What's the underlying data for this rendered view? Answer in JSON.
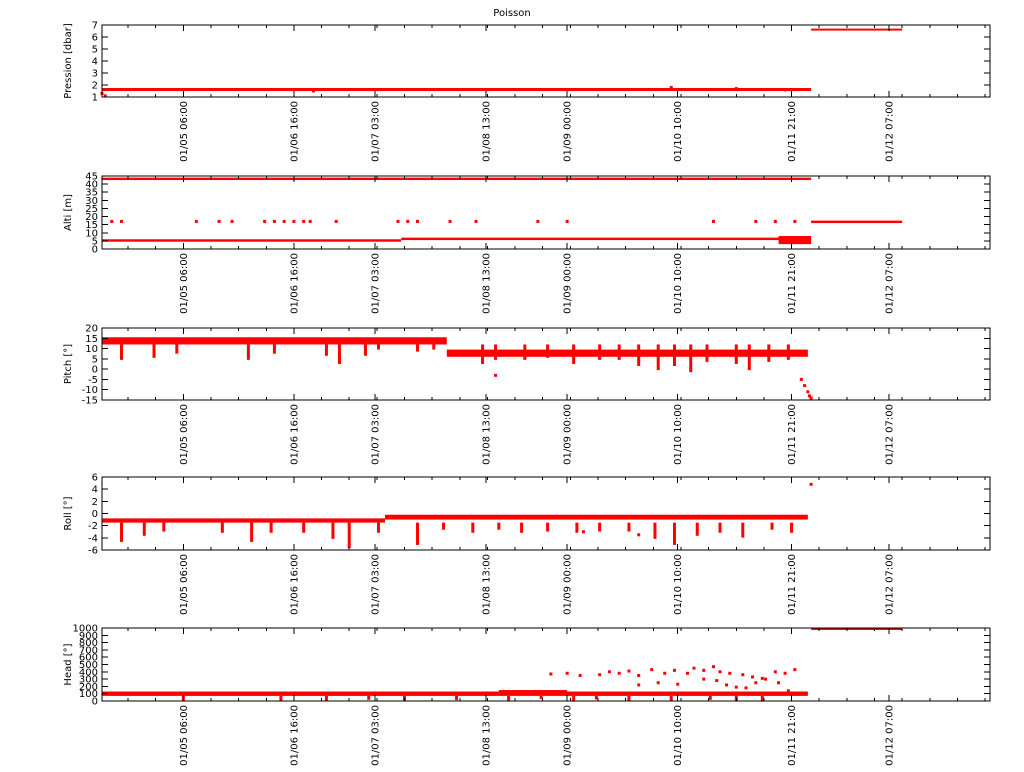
{
  "chart_data": {
    "type": "scatter",
    "title": "Poisson",
    "colors": {
      "series": "#ff0000",
      "axis": "#000000",
      "background": "#ffffff"
    },
    "x_tick_labels": [
      "01/05 06:00",
      "01/06 16:00",
      "01/07 03:00",
      "01/08 13:00",
      "01/09 00:00",
      "01/10 10:00",
      "01/11 21:00",
      "01/12 07:00"
    ],
    "x_tick_hours": [
      0,
      34,
      59,
      93,
      118,
      152,
      187,
      217
    ],
    "xlim_hours": [
      -25,
      248
    ],
    "grid": false,
    "legend": "none",
    "panels": [
      {
        "ylabel": "Pression [dbar]",
        "ylim": [
          1,
          7
        ],
        "yticks": [
          1,
          2,
          3,
          4,
          5,
          6,
          7
        ],
        "bands": [
          {
            "x": [
              -25,
              193
            ],
            "y": [
              1.5,
              1.75
            ]
          },
          {
            "x": [
              193,
              221
            ],
            "y": [
              6.55,
              6.7
            ]
          }
        ],
        "points": [
          [
            -25,
            1.3
          ],
          [
            -24,
            1.1
          ],
          [
            40,
            1.5
          ],
          [
            150,
            1.8
          ],
          [
            170,
            1.7
          ],
          [
            185,
            1.6
          ]
        ]
      },
      {
        "ylabel": "Alti [m]",
        "ylim": [
          0,
          45
        ],
        "yticks": [
          0,
          5,
          10,
          15,
          20,
          25,
          30,
          35,
          40,
          45
        ],
        "bands": [
          {
            "x": [
              -25,
              67
            ],
            "y": [
              4.5,
              6
            ]
          },
          {
            "x": [
              67,
              193
            ],
            "y": [
              5.5,
              7
            ]
          },
          {
            "x": [
              183,
              193
            ],
            "y": [
              3,
              8
            ]
          },
          {
            "x": [
              -25,
              193
            ],
            "y": [
              42.5,
              44
            ]
          },
          {
            "x": [
              193,
              221
            ],
            "y": [
              16,
              17.5
            ]
          }
        ],
        "points": [
          [
            -22,
            17
          ],
          [
            -19,
            17
          ],
          [
            4,
            17
          ],
          [
            11,
            17
          ],
          [
            15,
            17
          ],
          [
            25,
            17
          ],
          [
            28,
            17
          ],
          [
            31,
            17
          ],
          [
            34,
            17
          ],
          [
            37,
            17
          ],
          [
            39,
            17
          ],
          [
            47,
            17
          ],
          [
            66,
            17
          ],
          [
            69,
            17
          ],
          [
            72,
            17
          ],
          [
            82,
            17
          ],
          [
            90,
            17
          ],
          [
            109,
            17
          ],
          [
            118,
            17
          ],
          [
            163,
            17
          ],
          [
            176,
            17
          ],
          [
            182,
            17
          ],
          [
            188,
            17
          ]
        ]
      },
      {
        "ylabel": "Pitch [°]",
        "ylim": [
          -15,
          20
        ],
        "yticks": [
          -15,
          -10,
          -5,
          0,
          5,
          10,
          15,
          20
        ],
        "bands": [
          {
            "x": [
              -25,
              81
            ],
            "y": [
              12,
              15.5
            ]
          },
          {
            "x": [
              81,
              192
            ],
            "y": [
              6,
              9.5
            ]
          }
        ],
        "spikes": [
          [
            -19,
            5
          ],
          [
            -9,
            6
          ],
          [
            -2,
            8
          ],
          [
            20,
            5
          ],
          [
            28,
            8
          ],
          [
            44,
            7
          ],
          [
            48,
            3
          ],
          [
            56,
            7
          ],
          [
            60,
            10
          ],
          [
            72,
            9
          ],
          [
            77,
            10
          ],
          [
            92,
            3
          ],
          [
            96,
            5
          ],
          [
            105,
            5
          ],
          [
            112,
            6
          ],
          [
            120,
            3
          ],
          [
            128,
            5
          ],
          [
            134,
            5
          ],
          [
            140,
            2
          ],
          [
            146,
            0
          ],
          [
            151,
            2
          ],
          [
            156,
            -1
          ],
          [
            161,
            4
          ],
          [
            170,
            3
          ],
          [
            174,
            0
          ],
          [
            180,
            4
          ],
          [
            186,
            5
          ]
        ],
        "points": [
          [
            96,
            -3
          ],
          [
            190,
            -5
          ],
          [
            191,
            -8
          ],
          [
            192,
            -11
          ],
          [
            192.5,
            -13
          ],
          [
            193,
            -14
          ]
        ]
      },
      {
        "ylabel": "Roll [°]",
        "ylim": [
          -6,
          6
        ],
        "yticks": [
          -6,
          -4,
          -2,
          0,
          2,
          4,
          6
        ],
        "bands": [
          {
            "x": [
              -25,
              62
            ],
            "y": [
              -1.5,
              -0.8
            ]
          },
          {
            "x": [
              62,
              192
            ],
            "y": [
              -1,
              -0.2
            ]
          }
        ],
        "spikes": [
          [
            -19,
            -4.5
          ],
          [
            -12,
            -3.5
          ],
          [
            -6,
            -2.8
          ],
          [
            12,
            -3
          ],
          [
            21,
            -4.5
          ],
          [
            27,
            -3
          ],
          [
            37,
            -3
          ],
          [
            46,
            -4
          ],
          [
            51,
            -5.5
          ],
          [
            60,
            -3
          ],
          [
            72,
            -5
          ],
          [
            80,
            -2.5
          ],
          [
            89,
            -3
          ],
          [
            97,
            -2.5
          ],
          [
            104,
            -3
          ],
          [
            112,
            -2.8
          ],
          [
            121,
            -3
          ],
          [
            128,
            -2.8
          ],
          [
            137,
            -2.8
          ],
          [
            145,
            -4
          ],
          [
            151,
            -5
          ],
          [
            158,
            -3.5
          ],
          [
            165,
            -3
          ],
          [
            172,
            -3.8
          ],
          [
            181,
            -2.5
          ],
          [
            187,
            -3
          ]
        ],
        "points": [
          [
            193,
            4.8
          ],
          [
            140,
            -3.5
          ],
          [
            123,
            -3
          ]
        ]
      },
      {
        "ylabel": "Head [°]",
        "ylim": [
          0,
          1000
        ],
        "yticks": [
          0,
          100,
          200,
          300,
          400,
          500,
          600,
          700,
          800,
          900,
          1000
        ],
        "bands": [
          {
            "x": [
              -25,
              192
            ],
            "y": [
              70,
              130
            ]
          },
          {
            "x": [
              97,
              118
            ],
            "y": [
              110,
              150
            ]
          },
          {
            "x": [
              193,
              221
            ],
            "y": [
              980,
              1000
            ]
          }
        ],
        "spikes": [
          [
            0,
            20
          ],
          [
            30,
            10
          ],
          [
            44,
            20
          ],
          [
            57,
            30
          ],
          [
            68,
            15
          ],
          [
            84,
            25
          ],
          [
            100,
            15
          ],
          [
            110,
            40
          ],
          [
            120,
            5
          ],
          [
            127,
            35
          ],
          [
            137,
            10
          ],
          [
            150,
            20
          ],
          [
            162,
            30
          ],
          [
            170,
            10
          ],
          [
            178,
            5
          ]
        ],
        "points": [
          [
            113,
            370
          ],
          [
            118,
            380
          ],
          [
            122,
            350
          ],
          [
            128,
            360
          ],
          [
            131,
            400
          ],
          [
            134,
            380
          ],
          [
            137,
            410
          ],
          [
            140,
            350
          ],
          [
            144,
            430
          ],
          [
            148,
            380
          ],
          [
            151,
            420
          ],
          [
            155,
            380
          ],
          [
            157,
            450
          ],
          [
            160,
            420
          ],
          [
            163,
            470
          ],
          [
            165,
            400
          ],
          [
            168,
            380
          ],
          [
            172,
            360
          ],
          [
            175,
            330
          ],
          [
            178,
            310
          ],
          [
            182,
            400
          ],
          [
            185,
            380
          ],
          [
            188,
            430
          ],
          [
            160,
            300
          ],
          [
            164,
            280
          ],
          [
            167,
            220
          ],
          [
            170,
            190
          ],
          [
            173,
            180
          ],
          [
            176,
            250
          ],
          [
            179,
            300
          ],
          [
            183,
            250
          ],
          [
            186,
            140
          ],
          [
            140,
            220
          ],
          [
            146,
            250
          ],
          [
            152,
            230
          ]
        ]
      }
    ]
  }
}
